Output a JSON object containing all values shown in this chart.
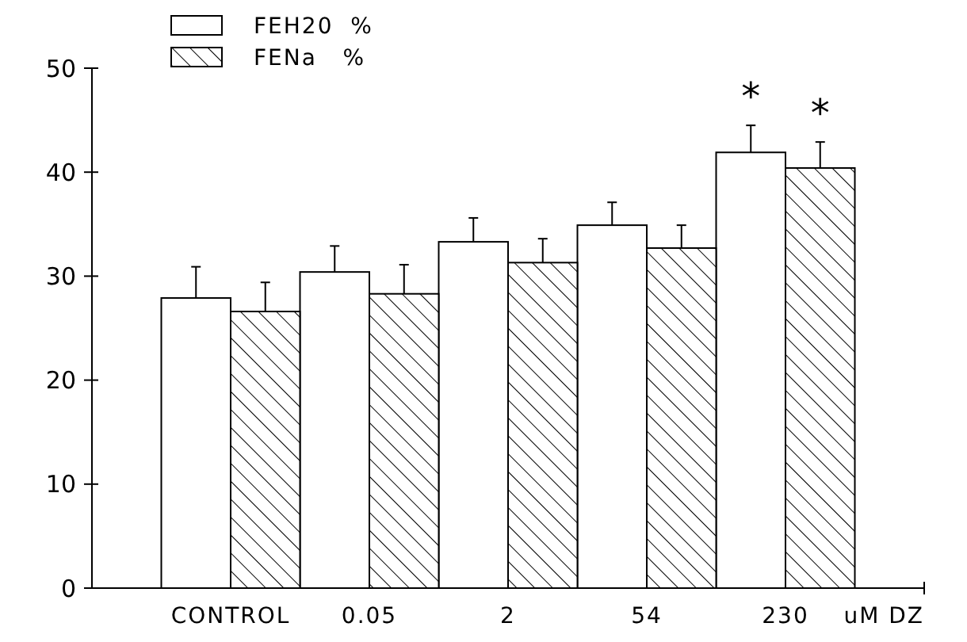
{
  "chart_data": {
    "type": "bar",
    "categories": [
      "CONTROL",
      "0.05",
      "2",
      "54",
      "230"
    ],
    "xlabel": "uM DZ",
    "series": [
      {
        "name": "FEH20  %",
        "color": "#ffffff",
        "values": [
          27.9,
          30.4,
          33.3,
          34.9,
          41.9
        ],
        "errors": [
          3.0,
          2.5,
          2.3,
          2.2,
          2.6
        ]
      },
      {
        "name": "FENa   %",
        "color": "#000000",
        "values": [
          26.6,
          28.3,
          31.3,
          32.7,
          40.4
        ],
        "errors": [
          2.8,
          2.8,
          2.3,
          2.2,
          2.5
        ]
      }
    ],
    "ylim": [
      0,
      50
    ],
    "yticks": [
      0,
      10,
      20,
      30,
      40,
      50
    ],
    "grid": false,
    "legend": "top left",
    "annotations": [
      "*",
      "*"
    ]
  }
}
